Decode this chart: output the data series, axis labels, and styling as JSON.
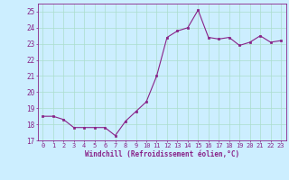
{
  "x": [
    0,
    1,
    2,
    3,
    4,
    5,
    6,
    7,
    8,
    9,
    10,
    11,
    12,
    13,
    14,
    15,
    16,
    17,
    18,
    19,
    20,
    21,
    22,
    23
  ],
  "y": [
    18.5,
    18.5,
    18.3,
    17.8,
    17.8,
    17.8,
    17.8,
    17.3,
    18.2,
    18.8,
    19.4,
    21.0,
    23.4,
    23.8,
    24.0,
    25.1,
    23.4,
    23.3,
    23.4,
    22.9,
    23.1,
    23.5,
    23.1,
    23.2
  ],
  "xlim": [
    -0.5,
    23.5
  ],
  "ylim": [
    17,
    25.5
  ],
  "yticks": [
    17,
    18,
    19,
    20,
    21,
    22,
    23,
    24,
    25
  ],
  "xticks": [
    0,
    1,
    2,
    3,
    4,
    5,
    6,
    7,
    8,
    9,
    10,
    11,
    12,
    13,
    14,
    15,
    16,
    17,
    18,
    19,
    20,
    21,
    22,
    23
  ],
  "xlabel": "Windchill (Refroidissement éolien,°C)",
  "line_color": "#882288",
  "marker_color": "#882288",
  "bg_color": "#cceeff",
  "grid_color": "#aaddcc",
  "tick_color": "#882288",
  "label_color": "#882288",
  "font_family": "monospace"
}
